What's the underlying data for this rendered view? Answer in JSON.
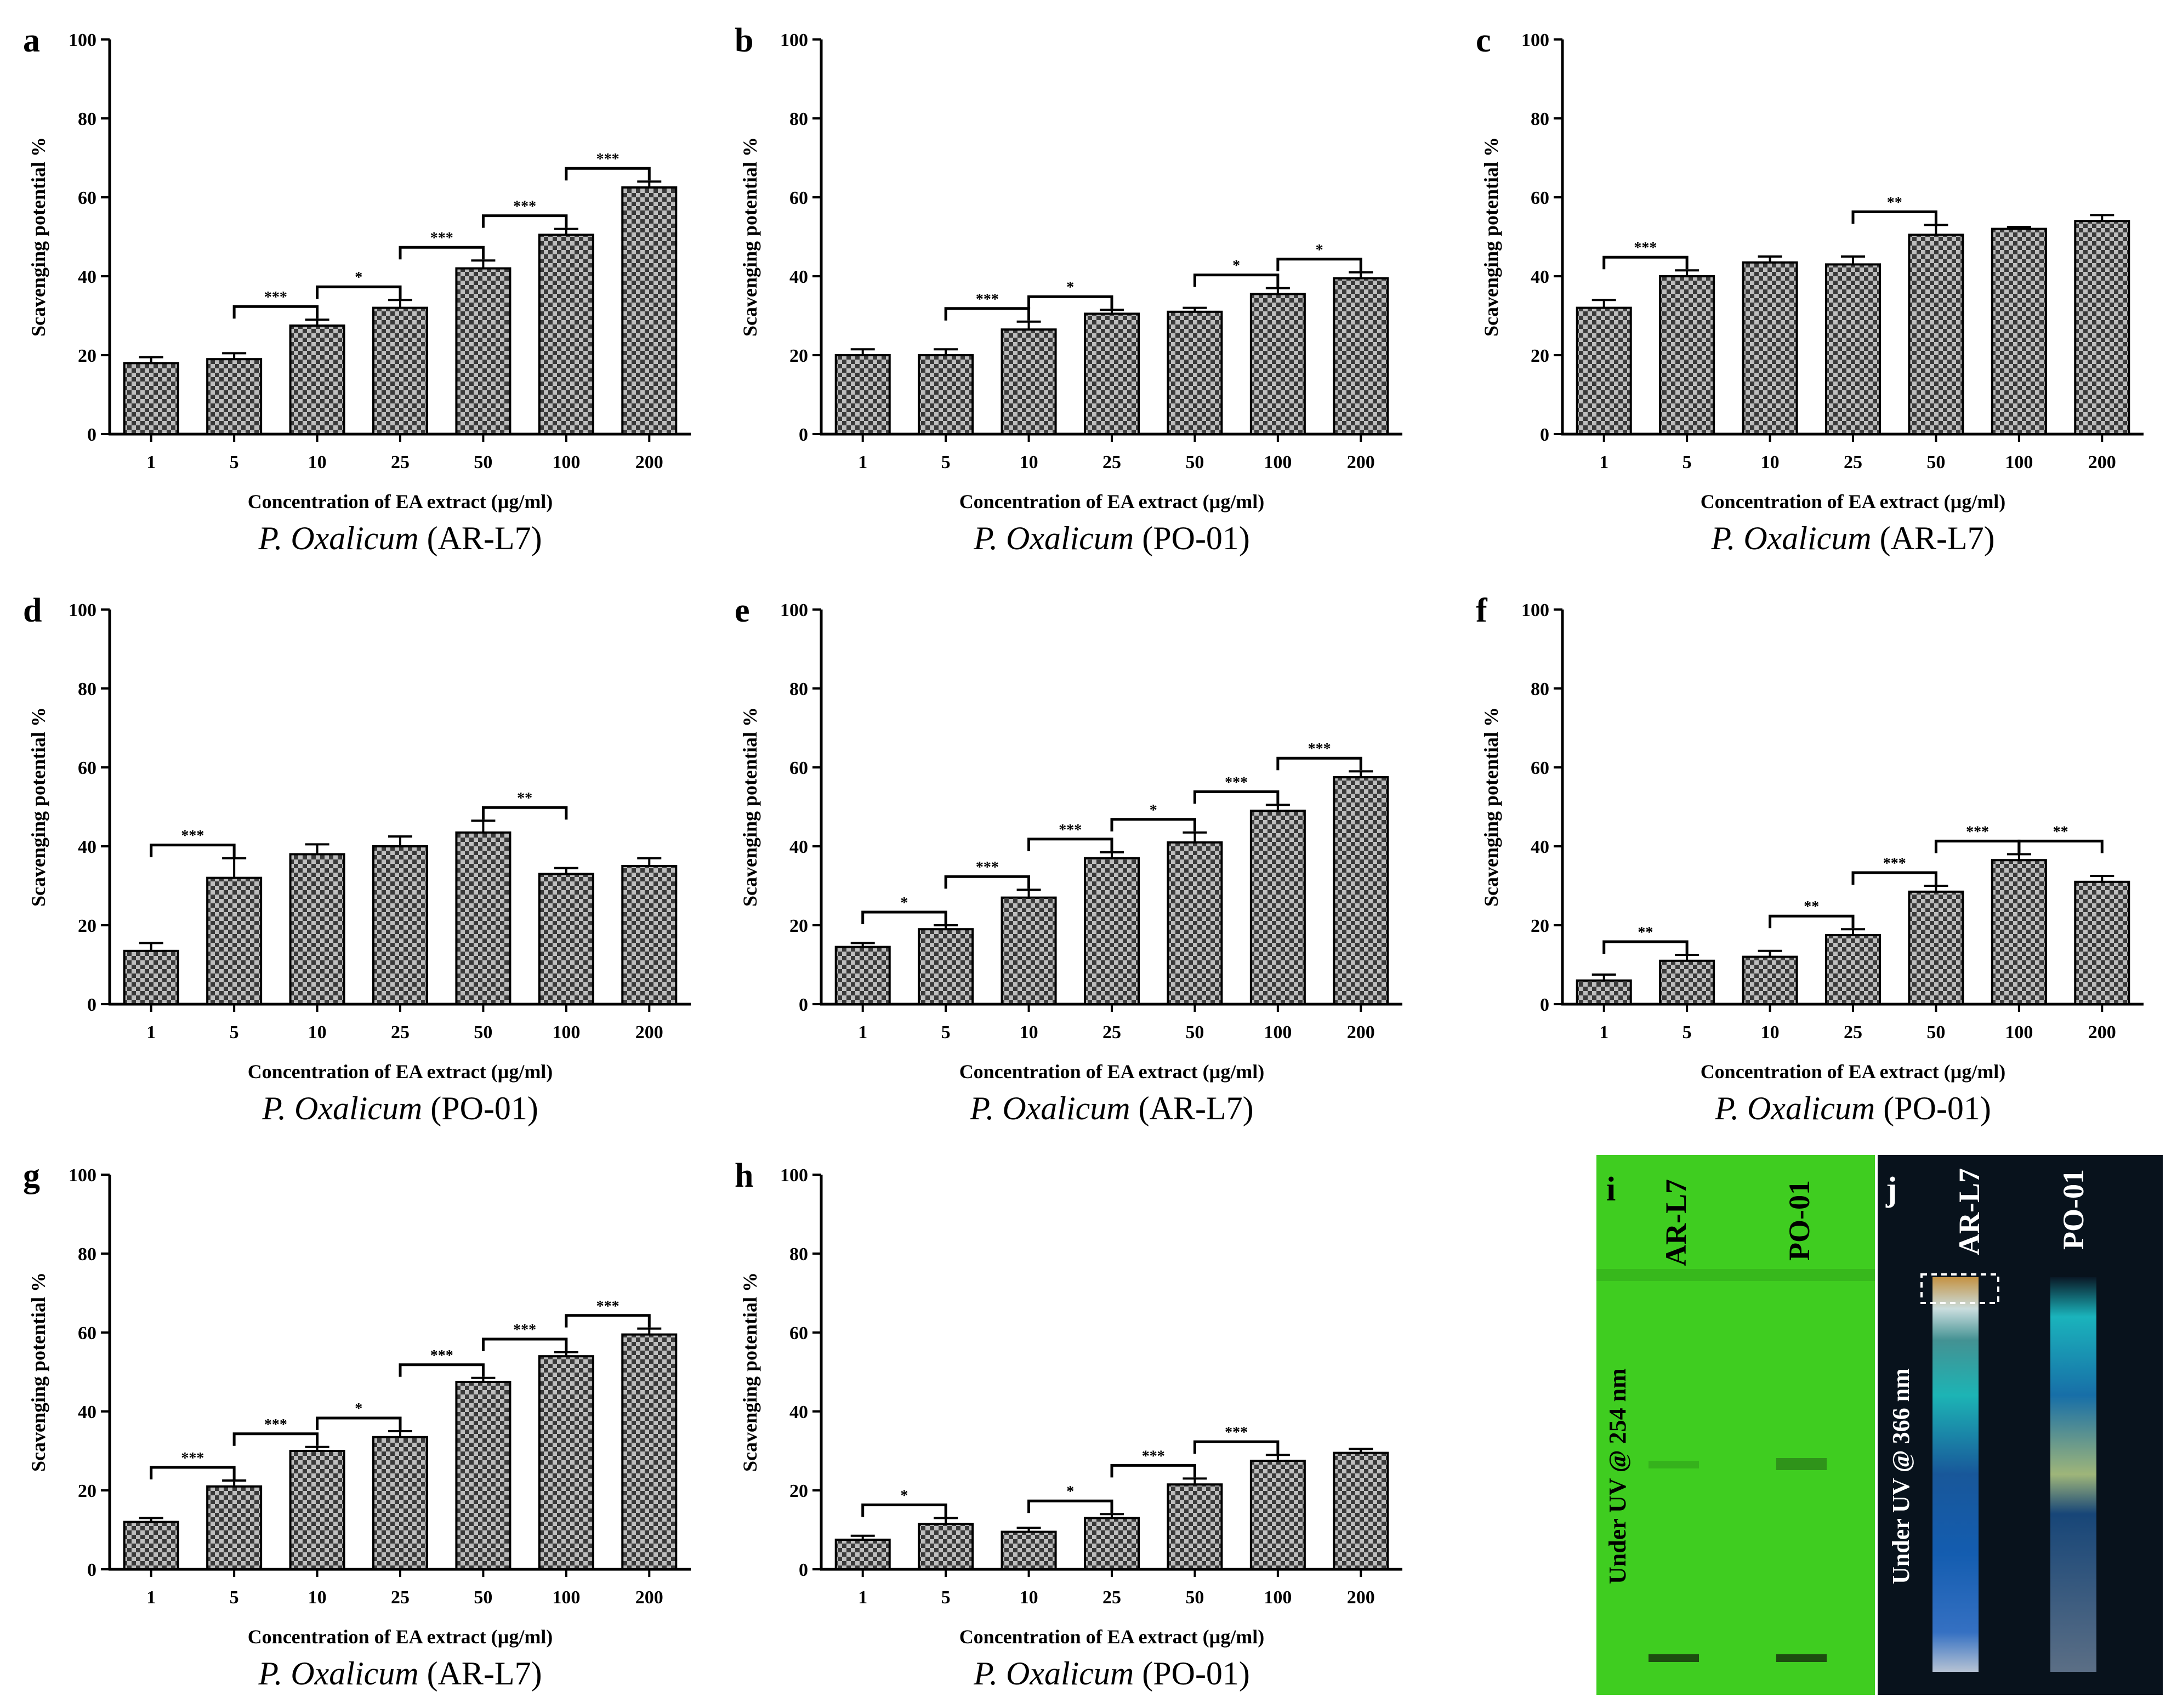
{
  "chart_data": [
    {
      "panel": "a",
      "type": "bar",
      "categories": [
        "1",
        "5",
        "10",
        "25",
        "50",
        "100",
        "200"
      ],
      "values": [
        18,
        19,
        27.5,
        32,
        42,
        50.5,
        62.5
      ],
      "errors": [
        1.5,
        1.5,
        1.5,
        2,
        2,
        1.5,
        1.5
      ],
      "ylim": [
        0,
        100
      ],
      "yticks": [
        "0",
        "20",
        "40",
        "60",
        "80",
        "100"
      ],
      "ylabel": "Scavenging potential %",
      "xlabel": "Concentration of EA extract (µg/ml)",
      "caption_italic": "P. Oxalicum",
      "caption_strain": "(AR-L7)",
      "significance": [
        {
          "from": 1,
          "to": 2,
          "label": "***"
        },
        {
          "from": 2,
          "to": 3,
          "label": "*"
        },
        {
          "from": 3,
          "to": 4,
          "label": "***"
        },
        {
          "from": 4,
          "to": 5,
          "label": "***"
        },
        {
          "from": 5,
          "to": 6,
          "label": "***"
        }
      ]
    },
    {
      "panel": "b",
      "type": "bar",
      "categories": [
        "1",
        "5",
        "10",
        "25",
        "50",
        "100",
        "200"
      ],
      "values": [
        20,
        20,
        26.5,
        30.5,
        31,
        35.5,
        39.5
      ],
      "errors": [
        1.5,
        1.5,
        2,
        1,
        1,
        1.5,
        1.5
      ],
      "ylim": [
        0,
        100
      ],
      "yticks": [
        "0",
        "20",
        "40",
        "60",
        "80",
        "100"
      ],
      "ylabel": "Scavenging potential %",
      "xlabel": "Concentration of EA extract (µg/ml)",
      "caption_italic": "P. Oxalicum",
      "caption_strain": "(PO-01)",
      "significance": [
        {
          "from": 1,
          "to": 2,
          "label": "***"
        },
        {
          "from": 2,
          "to": 3,
          "label": "*"
        },
        {
          "from": 4,
          "to": 5,
          "label": "*"
        },
        {
          "from": 5,
          "to": 6,
          "label": "*"
        }
      ]
    },
    {
      "panel": "c",
      "type": "bar",
      "categories": [
        "1",
        "5",
        "10",
        "25",
        "50",
        "100",
        "200"
      ],
      "values": [
        32,
        40,
        43.5,
        43,
        50.5,
        52,
        54
      ],
      "errors": [
        2,
        1.5,
        1.5,
        2,
        2.5,
        0.5,
        1.5
      ],
      "ylim": [
        0,
        100
      ],
      "yticks": [
        "0",
        "20",
        "40",
        "60",
        "80",
        "100"
      ],
      "ylabel": "Scavenging potential %",
      "xlabel": "Concentration of EA extract (µg/ml)",
      "caption_italic": "P. Oxalicum",
      "caption_strain": "(AR-L7)",
      "significance": [
        {
          "from": 0,
          "to": 1,
          "label": "***"
        },
        {
          "from": 3,
          "to": 4,
          "label": "**"
        }
      ]
    },
    {
      "panel": "d",
      "type": "bar",
      "categories": [
        "1",
        "5",
        "10",
        "25",
        "50",
        "100",
        "200"
      ],
      "values": [
        13.5,
        32,
        38,
        40,
        43.5,
        33,
        35
      ],
      "errors": [
        2,
        5,
        2.5,
        2.5,
        3,
        1.5,
        2
      ],
      "ylim": [
        0,
        100
      ],
      "yticks": [
        "0",
        "20",
        "40",
        "60",
        "80",
        "100"
      ],
      "ylabel": "Scavenging potential %",
      "xlabel": "Concentration of EA extract (µg/ml)",
      "caption_italic": "P. Oxalicum",
      "caption_strain": "(PO-01)",
      "significance": [
        {
          "from": 0,
          "to": 1,
          "label": "***"
        },
        {
          "from": 4,
          "to": 5,
          "label": "**"
        }
      ]
    },
    {
      "panel": "e",
      "type": "bar",
      "categories": [
        "1",
        "5",
        "10",
        "25",
        "50",
        "100",
        "200"
      ],
      "values": [
        14.5,
        19,
        27,
        37,
        41,
        49,
        57.5
      ],
      "errors": [
        1,
        1,
        2,
        1.5,
        2.5,
        1.5,
        1.5
      ],
      "ylim": [
        0,
        100
      ],
      "yticks": [
        "0",
        "20",
        "40",
        "60",
        "80",
        "100"
      ],
      "ylabel": "Scavenging potential %",
      "xlabel": "Concentration of EA extract (µg/ml)",
      "caption_italic": "P. Oxalicum",
      "caption_strain": "(AR-L7)",
      "significance": [
        {
          "from": 0,
          "to": 1,
          "label": "*"
        },
        {
          "from": 1,
          "to": 2,
          "label": "***"
        },
        {
          "from": 2,
          "to": 3,
          "label": "***"
        },
        {
          "from": 3,
          "to": 4,
          "label": "*"
        },
        {
          "from": 4,
          "to": 5,
          "label": "***"
        },
        {
          "from": 5,
          "to": 6,
          "label": "***"
        }
      ]
    },
    {
      "panel": "f",
      "type": "bar",
      "categories": [
        "1",
        "5",
        "10",
        "25",
        "50",
        "100",
        "200"
      ],
      "values": [
        6,
        11,
        12,
        17.5,
        28.5,
        36.5,
        31
      ],
      "errors": [
        1.5,
        1.5,
        1.5,
        1.5,
        1.5,
        1.5,
        1.5
      ],
      "ylim": [
        0,
        100
      ],
      "yticks": [
        "0",
        "20",
        "40",
        "60",
        "80",
        "100"
      ],
      "ylabel": "Scavenging potential %",
      "xlabel": "Concentration of EA extract (µg/ml)",
      "caption_italic": "P. Oxalicum",
      "caption_strain": "(PO-01)",
      "significance": [
        {
          "from": 0,
          "to": 1,
          "label": "**"
        },
        {
          "from": 2,
          "to": 3,
          "label": "**"
        },
        {
          "from": 3,
          "to": 4,
          "label": "***"
        },
        {
          "from": 4,
          "to": 5,
          "label": "***"
        },
        {
          "from": 5,
          "to": 6,
          "label": "**"
        }
      ]
    },
    {
      "panel": "g",
      "type": "bar",
      "categories": [
        "1",
        "5",
        "10",
        "25",
        "50",
        "100",
        "200"
      ],
      "values": [
        12,
        21,
        30,
        33.5,
        47.5,
        54,
        59.5
      ],
      "errors": [
        1,
        1.5,
        1,
        1.5,
        1,
        1,
        1.5
      ],
      "ylim": [
        0,
        100
      ],
      "yticks": [
        "0",
        "20",
        "40",
        "60",
        "80",
        "100"
      ],
      "ylabel": "Scavenging potential %",
      "xlabel": "Concentration of EA extract (µg/ml)",
      "caption_italic": "P. Oxalicum",
      "caption_strain": "(AR-L7)",
      "significance": [
        {
          "from": 0,
          "to": 1,
          "label": "***"
        },
        {
          "from": 1,
          "to": 2,
          "label": "***"
        },
        {
          "from": 2,
          "to": 3,
          "label": "*"
        },
        {
          "from": 3,
          "to": 4,
          "label": "***"
        },
        {
          "from": 4,
          "to": 5,
          "label": "***"
        },
        {
          "from": 5,
          "to": 6,
          "label": "***"
        }
      ]
    },
    {
      "panel": "h",
      "type": "bar",
      "categories": [
        "1",
        "5",
        "10",
        "25",
        "50",
        "100",
        "200"
      ],
      "values": [
        7.5,
        11.5,
        9.5,
        13,
        21.5,
        27.5,
        29.5
      ],
      "errors": [
        1,
        1.5,
        1,
        1,
        1.5,
        1.5,
        1
      ],
      "ylim": [
        0,
        100
      ],
      "yticks": [
        "0",
        "20",
        "40",
        "60",
        "80",
        "100"
      ],
      "ylabel": "Scavenging potential %",
      "xlabel": "Concentration of EA extract (µg/ml)",
      "caption_italic": "P. Oxalicum",
      "caption_strain": "(PO-01)",
      "significance": [
        {
          "from": 0,
          "to": 1,
          "label": "*"
        },
        {
          "from": 2,
          "to": 3,
          "label": "*"
        },
        {
          "from": 3,
          "to": 4,
          "label": "***"
        },
        {
          "from": 4,
          "to": 5,
          "label": "***"
        }
      ]
    }
  ],
  "tlc": {
    "i": {
      "letter": "i",
      "lane1": "AR-L7",
      "lane2": "PO-01",
      "side_label": "Under UV @ 254 nm",
      "background": "#3fcd20"
    },
    "j": {
      "letter": "j",
      "lane1": "AR-L7",
      "lane2": "PO-01",
      "side_label": "Under UV @ 366 nm",
      "background": "#08121c"
    }
  },
  "colors": {
    "bar_fill_dark": "#3a3a3a",
    "bar_fill_light": "#bdbdbd",
    "axis": "#000000"
  }
}
